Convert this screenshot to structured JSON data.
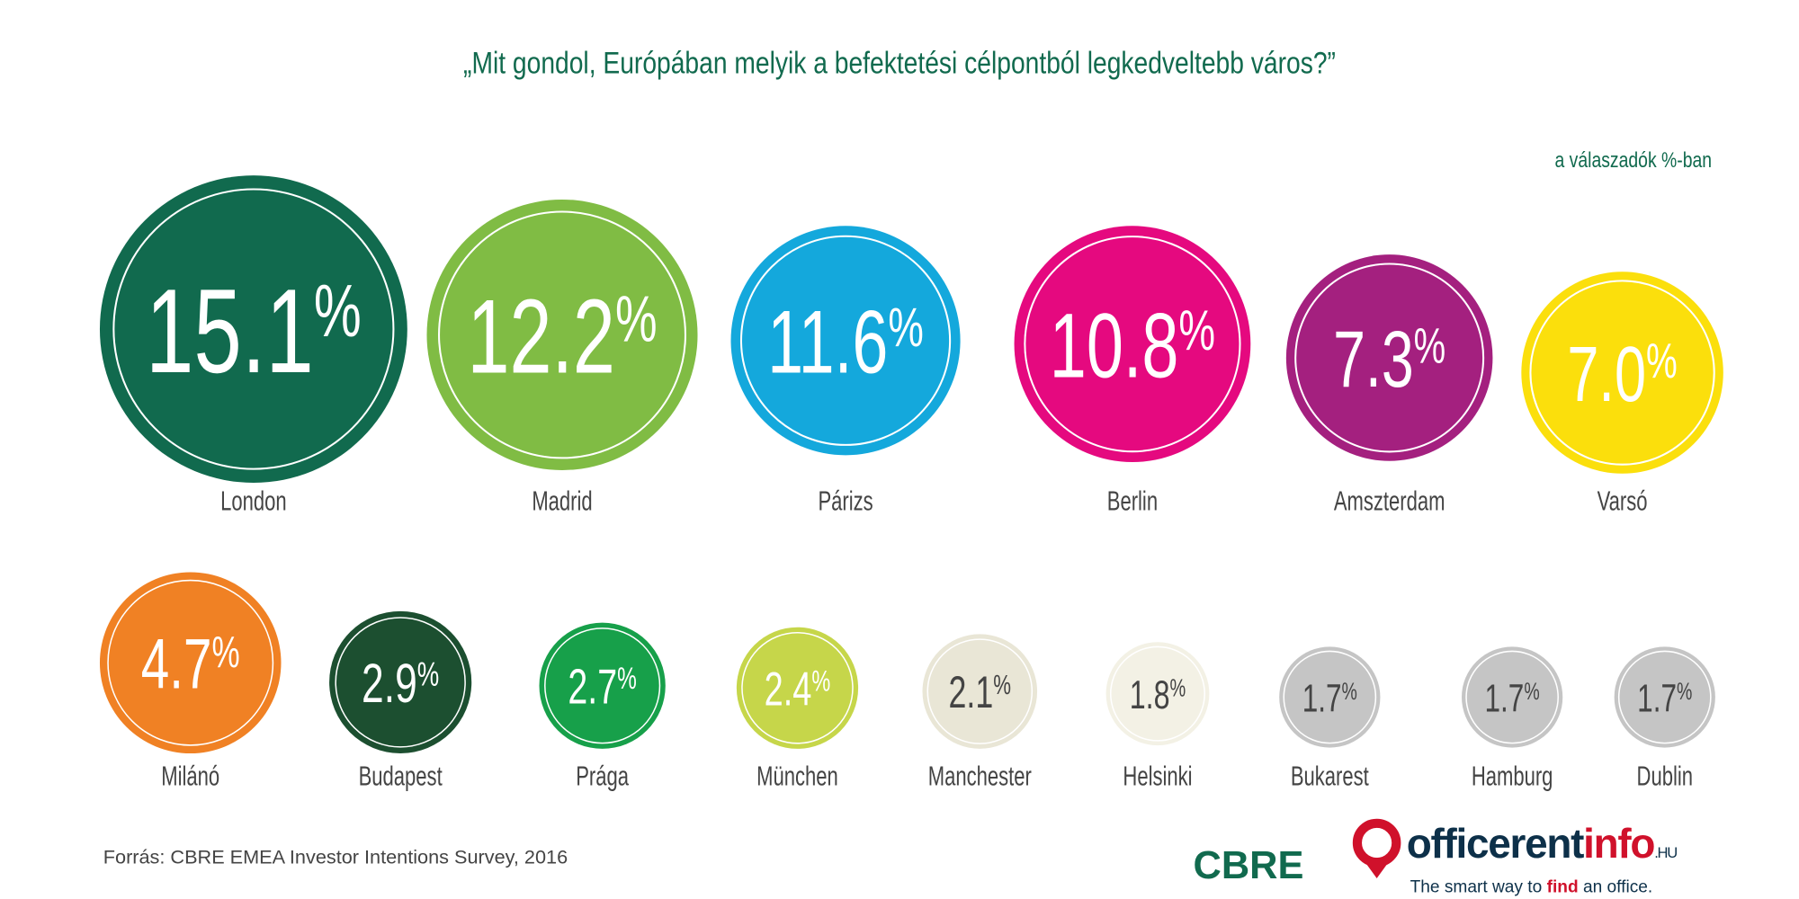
{
  "chart_data": {
    "type": "bubble",
    "title": "„Mit gondol, Európában melyik a befektetési célpontból legkedveltebb város?”",
    "subtitle": "a válaszadók %-ban",
    "unit": "%",
    "categories": [
      "London",
      "Madrid",
      "Párizs",
      "Berlin",
      "Amszterdam",
      "Varsó",
      "Milánó",
      "Budapest",
      "Prága",
      "München",
      "Manchester",
      "Helsinki",
      "Bukarest",
      "Hamburg",
      "Dublin"
    ],
    "values": [
      15.1,
      12.2,
      11.6,
      10.8,
      7.3,
      7.0,
      4.7,
      2.9,
      2.7,
      2.4,
      2.1,
      1.8,
      1.7,
      1.7,
      1.7
    ],
    "value_labels": [
      "15.1",
      "12.2",
      "11.6",
      "10.8",
      "7.3",
      "7.0",
      "4.7",
      "2.9",
      "2.7",
      "2.4",
      "2.1",
      "1.8",
      "1.7",
      "1.7",
      "1.7"
    ],
    "colors": [
      "#116a4e",
      "#80bc44",
      "#14a8dc",
      "#e5097f",
      "#a4207f",
      "#fbdf0c",
      "#f08124",
      "#1c4f30",
      "#17a04a",
      "#c6d64a",
      "#e9e6d6",
      "#f3f1e5",
      "#c5c5c5",
      "#c5c5c5",
      "#c5c5c5"
    ],
    "text_colors": [
      "#ffffff",
      "#ffffff",
      "#ffffff",
      "#ffffff",
      "#ffffff",
      "#ffffff",
      "#ffffff",
      "#ffffff",
      "#ffffff",
      "#ffffff",
      "#444444",
      "#444444",
      "#444444",
      "#444444",
      "#444444"
    ]
  },
  "source": "Forrás: CBRE EMEA Investor Intentions Survey, 2016",
  "logo": {
    "name_part1": "officerent",
    "name_part2": "info",
    "tld": ".HU",
    "tagline_a": "The smart way to ",
    "tagline_b": "find",
    "tagline_c": " an office.",
    "watermark": "CBRE"
  },
  "colors": {
    "title": "#116a4e",
    "logo_red": "#d0112b",
    "logo_navy": "#0d3049"
  }
}
